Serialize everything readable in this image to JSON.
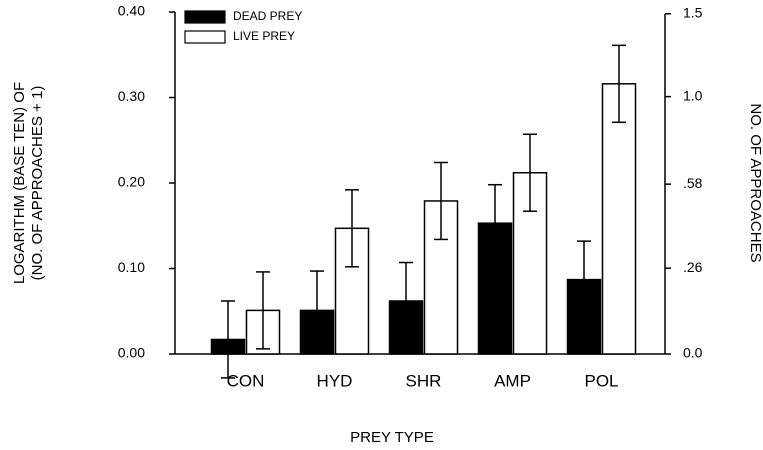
{
  "chart_data": {
    "type": "bar",
    "x_label": "PREY TYPE",
    "y_label": [
      "LOGARITHM (BASE TEN) OF",
      "(NO. OF APPROACHES + 1)"
    ],
    "y2_label": "NO. OF APPROACHES",
    "categories": [
      "CON",
      "HYD",
      "SHR",
      "AMP",
      "POL"
    ],
    "series": [
      {
        "name": "DEAD PREY",
        "color": "#000000",
        "values": [
          0.017,
          0.051,
          0.062,
          0.153,
          0.087
        ],
        "errors": [
          0.045,
          0.046,
          0.045,
          0.045,
          0.045
        ]
      },
      {
        "name": "LIVE PREY",
        "color": "#ffffff",
        "values": [
          0.051,
          0.147,
          0.179,
          0.212,
          0.316
        ],
        "errors": [
          0.045,
          0.045,
          0.045,
          0.045,
          0.045
        ]
      }
    ],
    "ylim": [
      0,
      0.4
    ],
    "yticks": [
      {
        "value": 0,
        "label": "0.00"
      },
      {
        "value": 0.1,
        "label": "0.10"
      },
      {
        "value": 0.2,
        "label": "0.20"
      },
      {
        "value": 0.3,
        "label": "0.30"
      },
      {
        "value": 0.4,
        "label": "0.40"
      }
    ],
    "y2lim": [
      0,
      1.5
    ],
    "y2scale": "log10(x+1)",
    "y2ticks": [
      {
        "value": 0,
        "label": "0.0"
      },
      {
        "value": 0.26,
        "label": ".26"
      },
      {
        "value": 0.58,
        "label": ".58"
      },
      {
        "value": 1.0,
        "label": "1.0"
      },
      1.5
    ],
    "legend": "upper left",
    "grid": false
  }
}
